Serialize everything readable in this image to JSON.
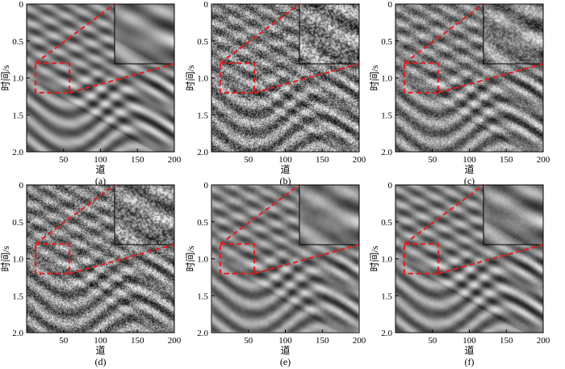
{
  "figure": {
    "panels": [
      {
        "id": "a",
        "label": "(a)",
        "noise": 0.0,
        "blur": 0
      },
      {
        "id": "b",
        "label": "(b)",
        "noise": 0.9,
        "blur": 0
      },
      {
        "id": "c",
        "label": "(c)",
        "noise": 0.55,
        "blur": 0
      },
      {
        "id": "d",
        "label": "(d)",
        "noise": 0.8,
        "blur": 0
      },
      {
        "id": "e",
        "label": "(e)",
        "noise": 0.25,
        "blur": 1
      },
      {
        "id": "f",
        "label": "(f)",
        "noise": 0.1,
        "blur": 0
      }
    ],
    "xlabel": "道",
    "ylabel": "时间/s",
    "x_ticks": [
      "50",
      "100",
      "150",
      "200"
    ],
    "x_tick_values": [
      50,
      100,
      150,
      200
    ],
    "y_ticks": [
      "0",
      "0.5",
      "1.0",
      "1.5",
      "2.0"
    ],
    "y_tick_values": [
      0,
      0.5,
      1.0,
      1.5,
      2.0
    ],
    "xlim": [
      0,
      200
    ],
    "ylim": [
      0,
      2.0
    ],
    "highlight_box": {
      "x": [
        12,
        58
      ],
      "y": [
        0.8,
        1.2
      ]
    },
    "highlight_color": "#e02020"
  }
}
